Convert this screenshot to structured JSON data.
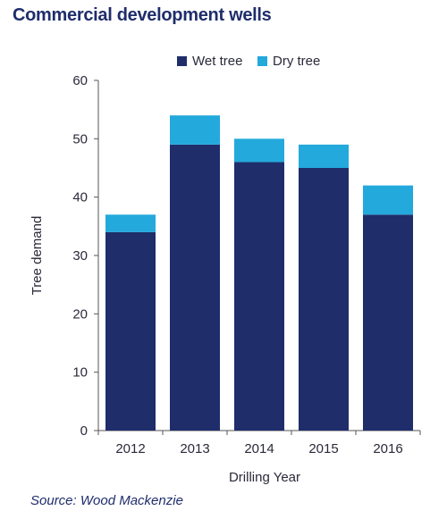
{
  "chart_data": {
    "type": "bar",
    "stacked": true,
    "title": "Commercial development wells",
    "xlabel": "Drilling Year",
    "ylabel": "Tree demand",
    "categories": [
      "2012",
      "2013",
      "2014",
      "2015",
      "2016"
    ],
    "series": [
      {
        "name": "Wet tree",
        "color": "#1f2d6b",
        "values": [
          34,
          49,
          46,
          45,
          37
        ]
      },
      {
        "name": "Dry tree",
        "color": "#23a9dc",
        "values": [
          3,
          5,
          4,
          4,
          5
        ]
      }
    ],
    "ylim": [
      0,
      60
    ],
    "yticks": [
      "0",
      "10",
      "20",
      "30",
      "40",
      "50",
      "60"
    ],
    "grid": false,
    "legend_position": "top-center",
    "source": "Source: Wood Mackenzie"
  }
}
